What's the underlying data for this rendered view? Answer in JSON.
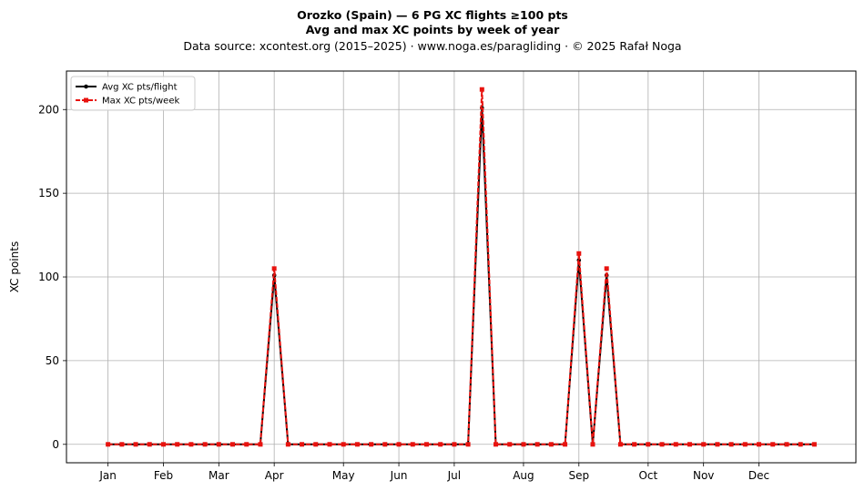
{
  "titles": {
    "line1": "Orozko (Spain)  —  6 PG XC flights ≥100 pts",
    "line2": "Avg and max XC points by week of year",
    "line3": "Data source: xcontest.org (2015–2025)  ·  www.noga.es/paragliding  ·  © 2025 Rafał Noga"
  },
  "chart_data": {
    "type": "line",
    "title": "Orozko (Spain)  —  6 PG XC flights ≥100 pts",
    "subtitle": "Avg and max XC points by week of year",
    "xlabel": "",
    "ylabel": "XC points",
    "xlim": [
      -2,
      55
    ],
    "ylim": [
      -11,
      223
    ],
    "grid": true,
    "legend_position": "top-left",
    "x_ticks": [
      {
        "label": "Jan",
        "week": 1
      },
      {
        "label": "Feb",
        "week": 5
      },
      {
        "label": "Mar",
        "week": 9
      },
      {
        "label": "Apr",
        "week": 13
      },
      {
        "label": "May",
        "week": 18
      },
      {
        "label": "Jun",
        "week": 22
      },
      {
        "label": "Jul",
        "week": 26
      },
      {
        "label": "Aug",
        "week": 31
      },
      {
        "label": "Sep",
        "week": 35
      },
      {
        "label": "Oct",
        "week": 40
      },
      {
        "label": "Nov",
        "week": 44
      },
      {
        "label": "Dec",
        "week": 48
      }
    ],
    "y_ticks": [
      0,
      50,
      100,
      150,
      200
    ],
    "x": [
      1,
      2,
      3,
      4,
      5,
      6,
      7,
      8,
      9,
      10,
      11,
      12,
      13,
      14,
      15,
      16,
      17,
      18,
      19,
      20,
      21,
      22,
      23,
      24,
      25,
      26,
      27,
      28,
      29,
      30,
      31,
      32,
      33,
      34,
      35,
      36,
      37,
      38,
      39,
      40,
      41,
      42,
      43,
      44,
      45,
      46,
      47,
      48,
      49,
      50,
      51,
      52
    ],
    "series": [
      {
        "name": "Avg XC pts/flight",
        "color": "#000000",
        "style": "solid",
        "marker": "circle",
        "values": [
          0,
          0,
          0,
          0,
          0,
          0,
          0,
          0,
          0,
          0,
          0,
          0,
          101,
          0,
          0,
          0,
          0,
          0,
          0,
          0,
          0,
          0,
          0,
          0,
          0,
          0,
          0,
          201,
          0,
          0,
          0,
          0,
          0,
          0,
          110,
          0,
          101,
          0,
          0,
          0,
          0,
          0,
          0,
          0,
          0,
          0,
          0,
          0,
          0,
          0,
          0,
          0
        ]
      },
      {
        "name": "Max XC pts/week",
        "color": "#e8130f",
        "style": "dashed",
        "marker": "square",
        "values": [
          0,
          0,
          0,
          0,
          0,
          0,
          0,
          0,
          0,
          0,
          0,
          0,
          105,
          0,
          0,
          0,
          0,
          0,
          0,
          0,
          0,
          0,
          0,
          0,
          0,
          0,
          0,
          212,
          0,
          0,
          0,
          0,
          0,
          0,
          114,
          0,
          105,
          0,
          0,
          0,
          0,
          0,
          0,
          0,
          0,
          0,
          0,
          0,
          0,
          0,
          0,
          0
        ]
      }
    ]
  }
}
